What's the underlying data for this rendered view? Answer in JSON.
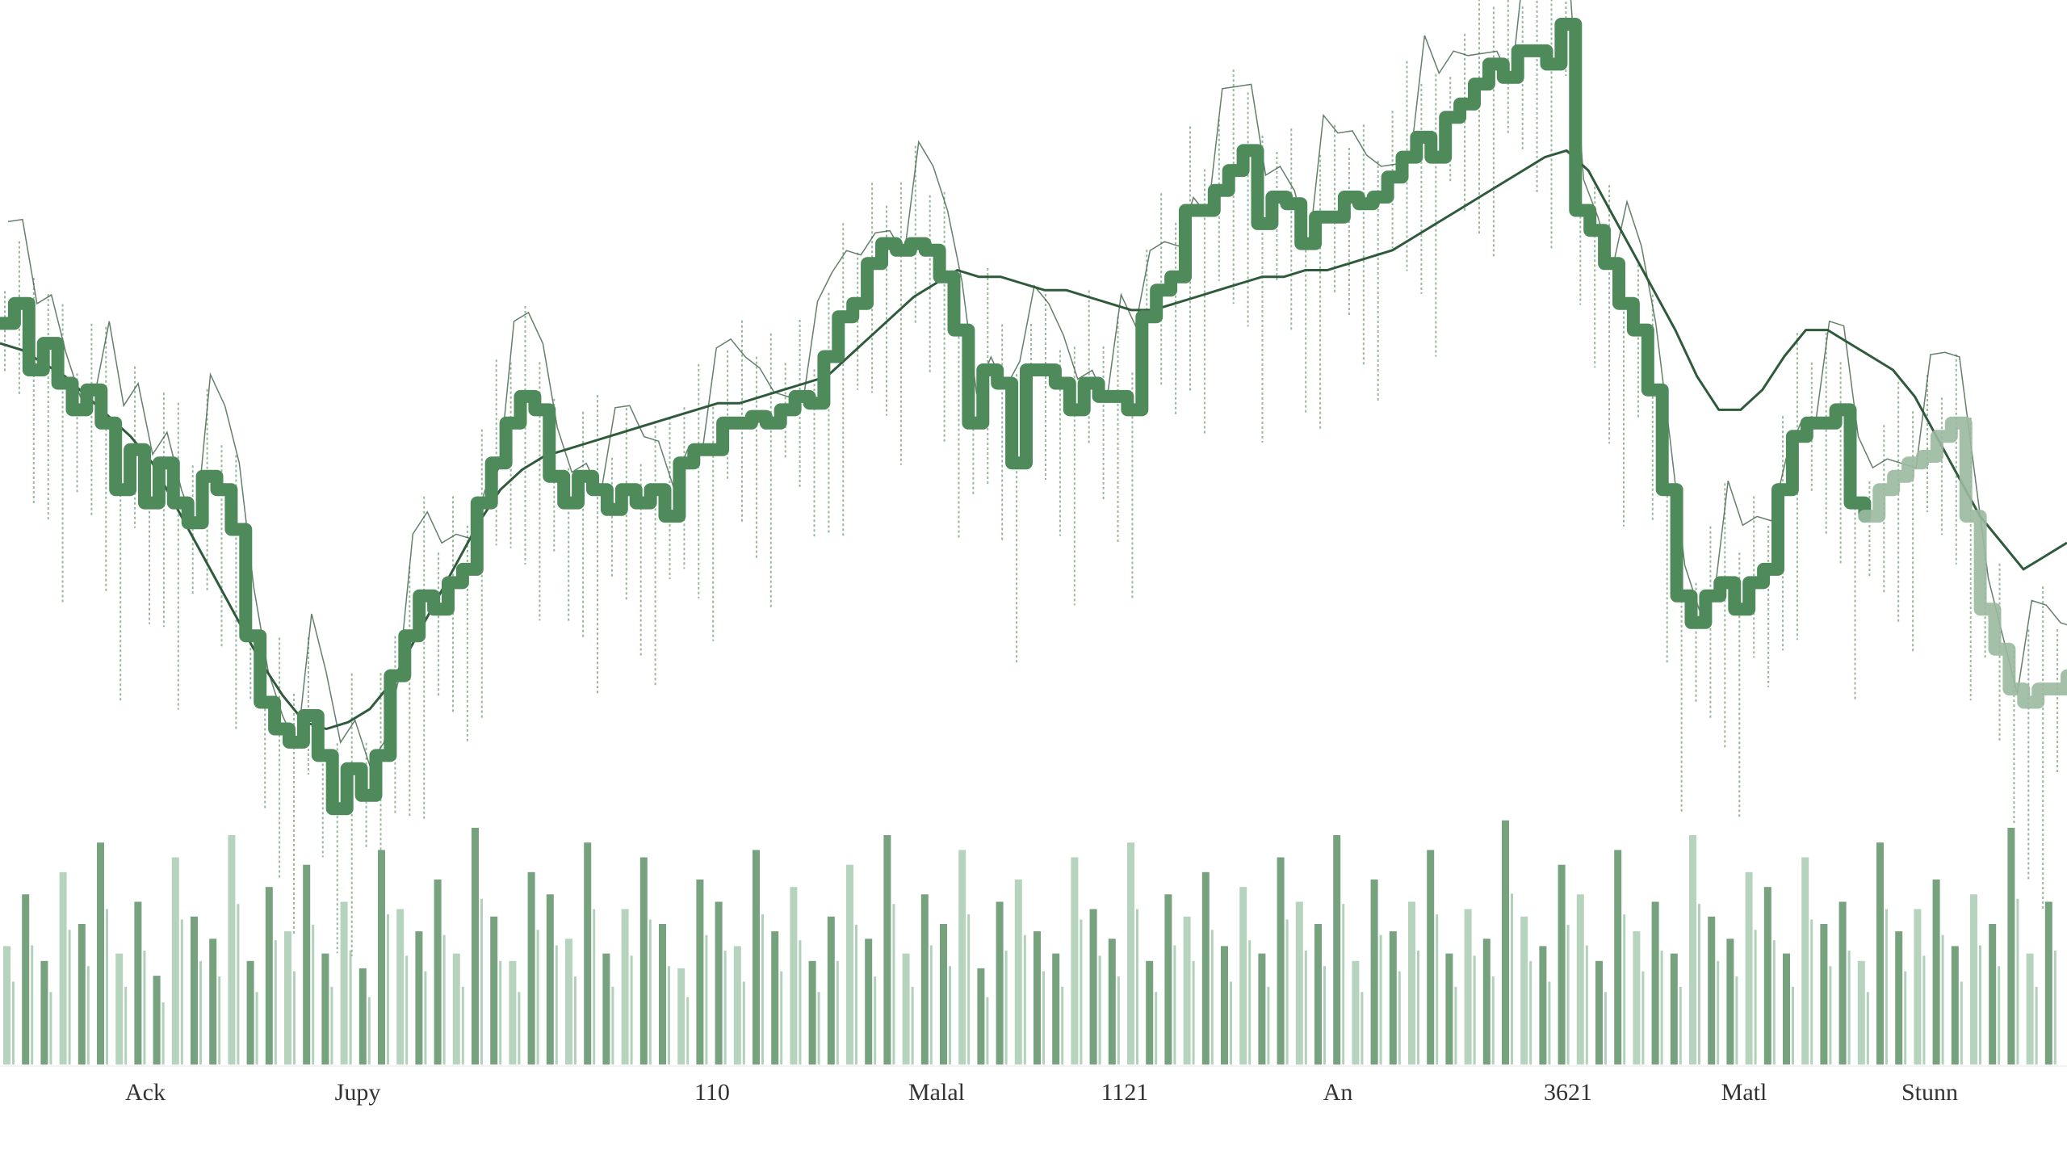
{
  "chart_data": {
    "type": "line",
    "title": "",
    "xlabel": "",
    "ylabel": "",
    "x_tick_labels": [
      "Ack",
      "Jupy",
      "110",
      "Malal",
      "1121",
      "An",
      "3621",
      "Matl",
      "Stunn"
    ],
    "price_ylim": [
      0,
      100
    ],
    "volume_ylim": [
      0,
      100
    ],
    "grid": false,
    "legend": "none",
    "colors": {
      "price": "#4e8a5a",
      "moving_average": "#2f5a3c",
      "noise": "#6b9a72",
      "volume": "#5e9266",
      "volume_light": "#a9cdb1",
      "fade": "#9bb9a0"
    },
    "series": [
      {
        "kind": "price",
        "values": [
          85,
          88,
          78,
          82,
          76,
          72,
          75,
          70,
          60,
          66,
          58,
          64,
          58,
          55,
          62,
          60,
          54,
          38,
          28,
          24,
          22,
          26,
          20,
          12,
          18,
          14,
          20,
          32,
          38,
          44,
          42,
          46,
          48,
          58,
          64,
          70,
          74,
          72,
          62,
          58,
          62,
          60,
          57,
          60,
          58,
          60,
          56,
          64,
          66,
          66,
          70,
          70,
          71,
          70,
          72,
          74,
          73,
          80,
          86,
          88,
          94,
          97,
          96,
          97,
          96,
          92,
          84,
          70,
          78,
          76,
          64,
          78,
          78,
          76,
          72,
          76,
          74,
          74,
          72,
          86,
          90,
          92,
          102,
          102,
          105,
          108,
          111,
          100,
          104,
          103,
          97,
          101,
          101,
          104,
          103,
          104,
          107,
          110,
          113,
          110,
          116,
          118,
          121,
          124,
          122,
          126,
          126,
          124,
          130,
          102,
          99,
          94,
          88,
          84,
          75,
          60,
          44,
          40,
          44,
          46,
          42,
          46,
          48,
          60,
          68,
          70,
          70,
          72,
          58,
          56,
          60,
          62,
          64,
          65,
          68,
          70,
          56,
          42,
          36,
          30,
          28,
          30,
          30,
          32
        ]
      },
      {
        "kind": "moving_average",
        "values": [
          82,
          81,
          79,
          77,
          74,
          71,
          68,
          64,
          58,
          52,
          46,
          40,
          34,
          29,
          25,
          24,
          25,
          27,
          31,
          37,
          43,
          49,
          55,
          60,
          63,
          65,
          66,
          67,
          68,
          69,
          70,
          71,
          72,
          73,
          73,
          74,
          75,
          76,
          77,
          80,
          83,
          86,
          89,
          91,
          93,
          92,
          92,
          91,
          90,
          90,
          89,
          88,
          87,
          87,
          88,
          89,
          90,
          91,
          92,
          92,
          93,
          93,
          94,
          95,
          96,
          98,
          100,
          102,
          104,
          106,
          108,
          110,
          111,
          108,
          102,
          96,
          90,
          84,
          77,
          72,
          72,
          75,
          80,
          84,
          84,
          82,
          80,
          78,
          74,
          68,
          62,
          56,
          52,
          48,
          50,
          52
        ]
      },
      {
        "kind": "volume",
        "values": [
          32,
          46,
          28,
          52,
          38,
          60,
          30,
          44,
          24,
          56,
          40,
          34,
          62,
          28,
          48,
          36,
          54,
          30,
          44,
          26,
          58,
          42,
          36,
          50,
          30,
          64,
          40,
          28,
          52,
          46,
          34,
          60,
          30,
          42,
          56,
          38,
          26,
          50,
          44,
          32,
          58,
          36,
          48,
          28,
          40,
          54,
          34,
          62,
          30,
          46,
          38,
          58,
          26,
          44,
          50,
          36,
          30,
          56,
          42,
          34,
          60,
          28,
          46,
          40,
          52,
          32,
          48,
          30,
          56,
          44,
          38,
          62,
          28,
          50,
          36,
          44,
          58,
          30,
          42,
          34,
          66,
          40,
          32,
          54,
          46,
          28,
          58,
          36,
          44,
          30,
          62,
          40,
          34,
          52,
          48,
          30,
          56,
          38,
          44,
          28,
          60,
          36,
          42,
          50,
          32,
          46,
          38,
          64,
          30,
          44
        ]
      }
    ]
  }
}
